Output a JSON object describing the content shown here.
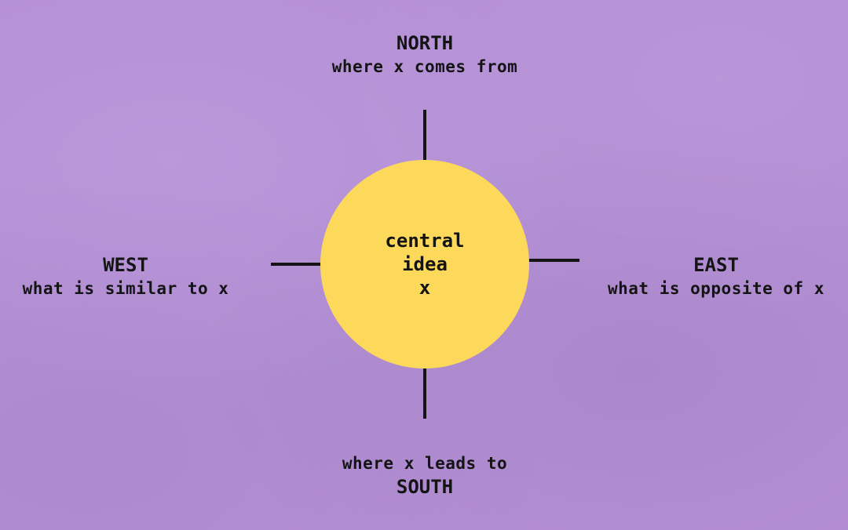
{
  "center": {
    "line1": "central",
    "line2": "idea",
    "line3": "x"
  },
  "north": {
    "heading": "NORTH",
    "description": "where x comes from"
  },
  "west": {
    "heading": "WEST",
    "description": "what is similar to x"
  },
  "east": {
    "heading": "EAST",
    "description": "what is opposite of x"
  },
  "south": {
    "description": "where x leads to",
    "heading": "SOUTH"
  },
  "colors": {
    "background": "#b48fd6",
    "circle": "#fdd95b",
    "ink": "#141414"
  }
}
